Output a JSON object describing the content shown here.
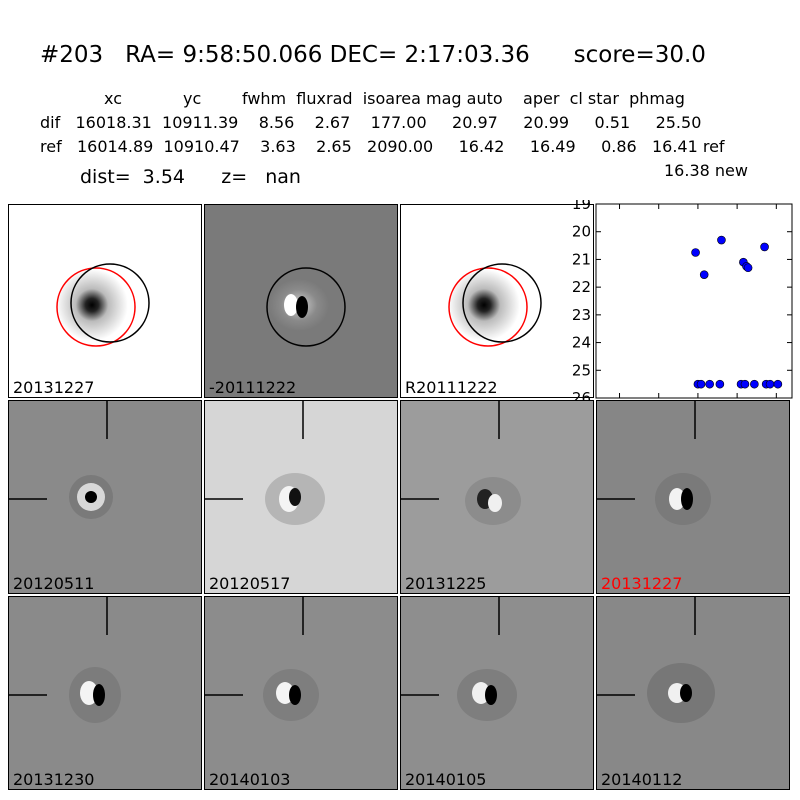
{
  "header": {
    "title": "#203   RA= 9:58:50.066 DEC= 2:17:03.36      score=30.0",
    "columns_line": "xc            yc        fwhm  fluxrad  isoarea mag auto    aper  cl star  phmag",
    "dif_line": "dif   16018.31  10911.39    8.56    2.67    177.00     20.97     20.99     0.51     25.50",
    "ref_line": "ref   16014.89  10910.47    3.63    2.65   2090.00     16.42     16.49     0.86   16.41 ref",
    "new_line": "16.38 new",
    "dist_line": "dist=  3.54      z=   nan"
  },
  "panels": [
    {
      "label": "20131227",
      "kind": "new-image"
    },
    {
      "label": "-20111222",
      "kind": "difference-image"
    },
    {
      "label": "R20111222",
      "kind": "reference-image"
    },
    {
      "label": "20120511",
      "kind": "epoch-cutout"
    },
    {
      "label": "20120517",
      "kind": "epoch-cutout"
    },
    {
      "label": "20131225",
      "kind": "epoch-cutout"
    },
    {
      "label": "20131227",
      "kind": "epoch-cutout",
      "highlight_color": "#ff0000"
    },
    {
      "label": "20131230",
      "kind": "epoch-cutout"
    },
    {
      "label": "20140103",
      "kind": "epoch-cutout"
    },
    {
      "label": "20140105",
      "kind": "epoch-cutout"
    },
    {
      "label": "20140112",
      "kind": "epoch-cutout"
    }
  ],
  "chart_data": {
    "type": "scatter",
    "xlim": [
      -130,
      120
    ],
    "ylim": [
      26,
      19
    ],
    "x_ticks": [
      -100,
      -50,
      0,
      50,
      100
    ],
    "y_ticks": [
      19,
      20,
      21,
      22,
      23,
      24,
      25,
      26
    ],
    "marker_color": "#0000ff",
    "points": [
      {
        "x": -3,
        "y": 20.75
      },
      {
        "x": 8,
        "y": 21.55
      },
      {
        "x": 30,
        "y": 20.3
      },
      {
        "x": 58,
        "y": 21.1
      },
      {
        "x": 62,
        "y": 21.25
      },
      {
        "x": 64,
        "y": 21.3
      },
      {
        "x": 85,
        "y": 20.55
      },
      {
        "x": 0,
        "y": 25.5
      },
      {
        "x": 4,
        "y": 25.5
      },
      {
        "x": 15,
        "y": 25.5
      },
      {
        "x": 28,
        "y": 25.5
      },
      {
        "x": 55,
        "y": 25.5
      },
      {
        "x": 60,
        "y": 25.5
      },
      {
        "x": 72,
        "y": 25.5
      },
      {
        "x": 87,
        "y": 25.5
      },
      {
        "x": 92,
        "y": 25.5
      },
      {
        "x": 102,
        "y": 25.5
      }
    ]
  }
}
